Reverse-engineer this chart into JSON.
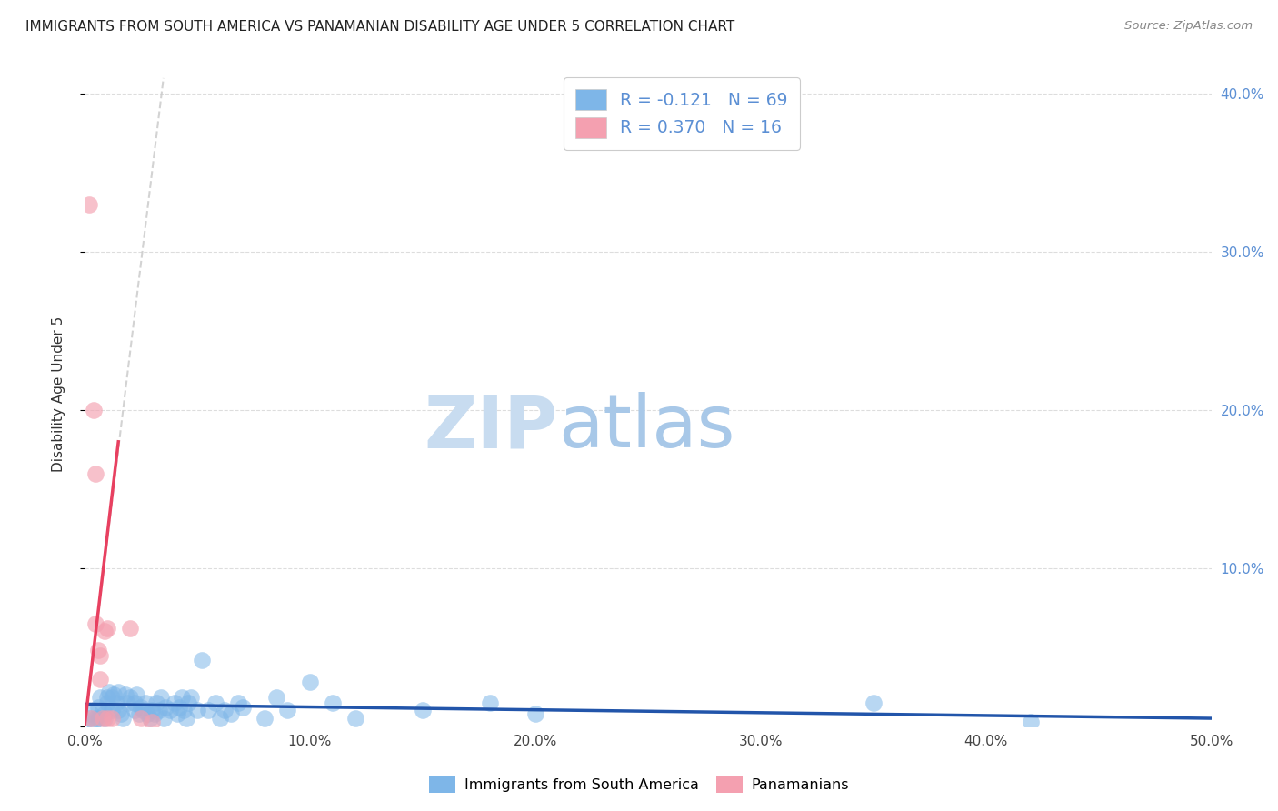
{
  "title": "IMMIGRANTS FROM SOUTH AMERICA VS PANAMANIAN DISABILITY AGE UNDER 5 CORRELATION CHART",
  "source": "Source: ZipAtlas.com",
  "ylabel": "Disability Age Under 5",
  "x_tick_labels": [
    "0.0%",
    "10.0%",
    "20.0%",
    "30.0%",
    "40.0%",
    "50.0%"
  ],
  "x_tick_vals": [
    0.0,
    10.0,
    20.0,
    30.0,
    40.0,
    50.0
  ],
  "y_tick_vals": [
    0.0,
    10.0,
    20.0,
    30.0,
    40.0
  ],
  "y_tick_labels_right": [
    "",
    "10.0%",
    "20.0%",
    "30.0%",
    "40.0%"
  ],
  "xlim": [
    0.0,
    50.0
  ],
  "ylim": [
    0.0,
    42.0
  ],
  "legend1_label": "Immigrants from South America",
  "legend2_label": "Panamanians",
  "r_blue": "-0.121",
  "n_blue": 69,
  "r_pink": "0.370",
  "n_pink": 16,
  "blue_color": "#7EB6E8",
  "pink_color": "#F4A0B0",
  "trendline_blue_color": "#2255AA",
  "trendline_pink_color": "#E84060",
  "trendline_grey_color": "#C8C8C8",
  "title_color": "#222222",
  "source_color": "#888888",
  "axis_label_color": "#333333",
  "right_tick_color": "#5B8FD4",
  "grid_color": "#DDDDDD",
  "watermark_zip_color": "#C8DCF0",
  "watermark_atlas_color": "#A8C8E8",
  "blue_points": [
    [
      0.2,
      0.5
    ],
    [
      0.3,
      0.8
    ],
    [
      0.4,
      0.3
    ],
    [
      0.5,
      0.5
    ],
    [
      0.6,
      1.2
    ],
    [
      0.6,
      0.5
    ],
    [
      0.7,
      1.8
    ],
    [
      0.8,
      1.0
    ],
    [
      0.9,
      0.5
    ],
    [
      0.9,
      0.8
    ],
    [
      1.0,
      1.5
    ],
    [
      1.0,
      1.8
    ],
    [
      1.1,
      2.2
    ],
    [
      1.2,
      1.0
    ],
    [
      1.2,
      1.8
    ],
    [
      1.3,
      2.0
    ],
    [
      1.4,
      1.5
    ],
    [
      1.5,
      1.0
    ],
    [
      1.5,
      2.2
    ],
    [
      1.6,
      0.8
    ],
    [
      1.7,
      0.5
    ],
    [
      1.8,
      2.0
    ],
    [
      1.9,
      1.5
    ],
    [
      2.0,
      1.8
    ],
    [
      2.2,
      1.0
    ],
    [
      2.2,
      1.5
    ],
    [
      2.3,
      2.0
    ],
    [
      2.4,
      0.8
    ],
    [
      2.5,
      1.2
    ],
    [
      2.6,
      1.0
    ],
    [
      2.7,
      1.5
    ],
    [
      2.8,
      0.8
    ],
    [
      2.9,
      0.5
    ],
    [
      3.0,
      1.0
    ],
    [
      3.1,
      0.8
    ],
    [
      3.2,
      1.5
    ],
    [
      3.3,
      1.0
    ],
    [
      3.4,
      1.8
    ],
    [
      3.5,
      0.5
    ],
    [
      3.6,
      1.2
    ],
    [
      3.8,
      1.0
    ],
    [
      4.0,
      1.5
    ],
    [
      4.1,
      0.8
    ],
    [
      4.2,
      1.2
    ],
    [
      4.3,
      1.8
    ],
    [
      4.4,
      1.0
    ],
    [
      4.5,
      0.5
    ],
    [
      4.6,
      1.5
    ],
    [
      4.7,
      1.8
    ],
    [
      5.0,
      1.0
    ],
    [
      5.2,
      4.2
    ],
    [
      5.5,
      1.0
    ],
    [
      5.8,
      1.5
    ],
    [
      6.0,
      0.5
    ],
    [
      6.2,
      1.0
    ],
    [
      6.5,
      0.8
    ],
    [
      6.8,
      1.5
    ],
    [
      7.0,
      1.2
    ],
    [
      8.0,
      0.5
    ],
    [
      8.5,
      1.8
    ],
    [
      9.0,
      1.0
    ],
    [
      10.0,
      2.8
    ],
    [
      11.0,
      1.5
    ],
    [
      12.0,
      0.5
    ],
    [
      15.0,
      1.0
    ],
    [
      18.0,
      1.5
    ],
    [
      20.0,
      0.8
    ],
    [
      35.0,
      1.5
    ],
    [
      42.0,
      0.3
    ]
  ],
  "pink_points": [
    [
      0.2,
      33.0
    ],
    [
      0.3,
      0.5
    ],
    [
      0.4,
      20.0
    ],
    [
      0.5,
      16.0
    ],
    [
      0.5,
      6.5
    ],
    [
      0.6,
      4.8
    ],
    [
      0.7,
      3.0
    ],
    [
      0.7,
      4.5
    ],
    [
      0.8,
      0.5
    ],
    [
      0.9,
      6.0
    ],
    [
      1.0,
      6.2
    ],
    [
      1.0,
      0.5
    ],
    [
      1.2,
      0.5
    ],
    [
      2.0,
      6.2
    ],
    [
      2.5,
      0.5
    ],
    [
      3.0,
      0.3
    ]
  ],
  "blue_trendline_x": [
    0.0,
    50.0
  ],
  "blue_trendline_y": [
    1.4,
    0.5
  ],
  "pink_trendline_x": [
    0.0,
    1.5
  ],
  "pink_trendline_y": [
    0.0,
    18.0
  ],
  "grey_trendline_x": [
    0.0,
    3.5
  ],
  "grey_trendline_y": [
    0.0,
    41.0
  ]
}
